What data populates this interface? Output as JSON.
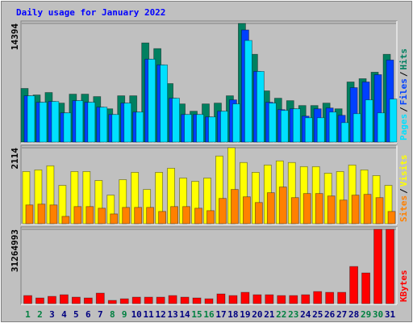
{
  "chart_data": {
    "type": "bar",
    "title": "Daily usage for January 2022",
    "title_color": "#0000ff",
    "legend_separator": "/",
    "categories": [
      "1",
      "2",
      "3",
      "4",
      "5",
      "6",
      "7",
      "8",
      "9",
      "10",
      "11",
      "12",
      "13",
      "14",
      "15",
      "16",
      "17",
      "18",
      "19",
      "20",
      "21",
      "22",
      "23",
      "24",
      "25",
      "26",
      "27",
      "28",
      "29",
      "30",
      "31"
    ],
    "category_colors": [
      "#008040",
      "#008040",
      "#000080",
      "#000080",
      "#000080",
      "#000080",
      "#000080",
      "#008040",
      "#008040",
      "#000080",
      "#000080",
      "#000080",
      "#000080",
      "#000080",
      "#008040",
      "#008040",
      "#000080",
      "#000080",
      "#000080",
      "#000080",
      "#000080",
      "#008040",
      "#008040",
      "#000080",
      "#000080",
      "#000080",
      "#000080",
      "#000080",
      "#008040",
      "#008040",
      "#000080"
    ],
    "panels": [
      {
        "ylim": [
          0,
          14394
        ],
        "yticks": [
          14394
        ],
        "series": [
          {
            "name": "Hits",
            "color": "#008060",
            "values": [
              6508,
              5719,
              6015,
              4733,
              5817,
              5817,
              5522,
              4043,
              5620,
              5620,
              12029,
              11339,
              7099,
              4634,
              3747,
              4634,
              4733,
              5620,
              14394,
              10649,
              6212,
              5324,
              5029,
              4437,
              4437,
              4733,
              4043,
              7296,
              7691,
              8480,
              10649
            ]
          },
          {
            "name": "Files",
            "color": "#0040ff",
            "values": [
              5620,
              4831,
              4930,
              3550,
              5029,
              4831,
              4240,
              3352,
              4733,
              3648,
              10057,
              9367,
              5324,
              3352,
              3352,
              3057,
              3747,
              5127,
              13607,
              8578,
              4831,
              3944,
              4043,
              3155,
              4043,
              4141,
              3254,
              6606,
              7296,
              8184,
              9959
            ]
          },
          {
            "name": "Pages",
            "color": "#00e0ff",
            "values": [
              5620,
              4831,
              4930,
              3550,
              5029,
              4831,
              4240,
              3352,
              4733,
              3648,
              10057,
              9367,
              5324,
              3352,
              3352,
              3057,
              3747,
              4634,
              12325,
              8578,
              4733,
              3845,
              4043,
              2958,
              2958,
              3648,
              2366,
              3451,
              5127,
              3550,
              5226
            ]
          }
        ]
      },
      {
        "ylim": [
          0,
          2114
        ],
        "yticks": [
          2114
        ],
        "series": [
          {
            "name": "Visits",
            "color": "#ffff00",
            "values": [
              1453,
              1498,
              1612,
              1067,
              1453,
              1453,
              1203,
              795,
              1226,
              1430,
              953,
              1430,
              1544,
              1271,
              1180,
              1271,
              1884,
              2114,
              1703,
              1430,
              1634,
              1748,
              1703,
              1589,
              1589,
              1407,
              1453,
              1634,
              1498,
              1339,
              1067
            ]
          },
          {
            "name": "Sites",
            "color": "#ff8000",
            "values": [
              522,
              545,
              522,
              204,
              477,
              477,
              431,
              272,
              454,
              454,
              454,
              341,
              477,
              477,
              431,
              363,
              704,
              953,
              749,
              590,
              863,
              1022,
              726,
              840,
              840,
              772,
              658,
              795,
              817,
              726,
              341
            ]
          }
        ]
      },
      {
        "ylim": [
          0,
          31264993
        ],
        "yticks": [
          31264993
        ],
        "series": [
          {
            "name": "KBytes",
            "color": "#ff0000",
            "values": [
              3398370,
              2378859,
              3058533,
              3738207,
              2718696,
              2378859,
              4417881,
              1359348,
              2039022,
              2718696,
              2718696,
              2718696,
              3398370,
              2718696,
              2378859,
              2039022,
              4078044,
              3398370,
              4757718,
              3738207,
              3738207,
              3398370,
              3398370,
              3738207,
              5097555,
              4757718,
              4757718,
              15632502,
              12913806,
              31264993,
              31264993
            ]
          }
        ]
      }
    ]
  }
}
